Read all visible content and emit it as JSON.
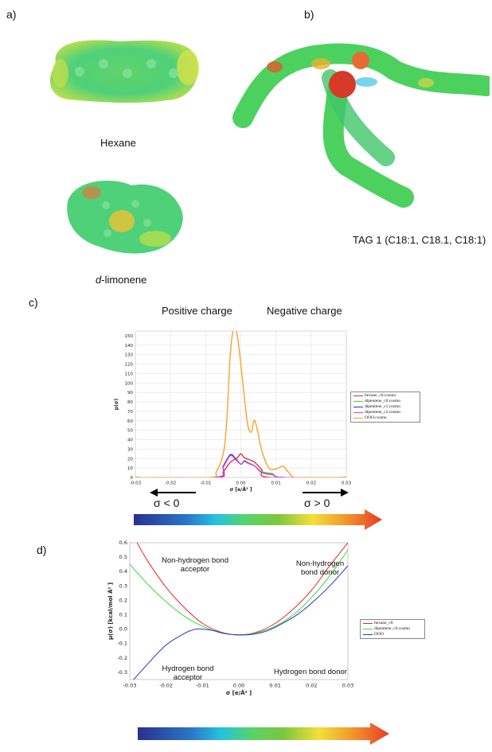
{
  "panels": {
    "a": "a)",
    "b": "b)",
    "c": "c)",
    "d": "d)"
  },
  "molecules": {
    "hexane": "Hexane",
    "limonene_italic": "d",
    "limonene_rest": "-limonene",
    "tag": "TAG 1 (C18:1, C18.1, C18:1)"
  },
  "panel_c": {
    "positive_charge": "Positive charge",
    "negative_charge": "Negative charge",
    "sigma_lt": "σ < 0",
    "sigma_gt": "σ > 0"
  },
  "panel_d": {
    "annotations": {
      "nh_acceptor": "Non-hydrogen bond\nacceptor",
      "nh_donor": "Non-hydrogen\nbond donor",
      "h_acceptor": "Hydrogen bond\nacceptor",
      "h_donor": "Hydrogen bond donor"
    }
  },
  "colors": {
    "red": "#e8252a",
    "green": "#3dd63d",
    "blue": "#2233cc",
    "magenta": "#e040e0",
    "orange": "#ff9a1a",
    "darkgreen": "#1b7a3a",
    "arrow_gradient": [
      "#2b2f8f",
      "#2a79c9",
      "#25c2e0",
      "#55d46b",
      "#7ec63c",
      "#f3e03a",
      "#f19a2a",
      "#e83a2a"
    ]
  },
  "chart_data": [
    {
      "type": "line",
      "ylabel": "p(σ)",
      "xlabel": "σ [e/Å² ]",
      "xlim": [
        -0.03,
        0.03
      ],
      "ylim": [
        0,
        155
      ],
      "xticks": [
        "-0.03",
        "-0.02",
        "-0.01",
        "0.00",
        "0.01",
        "0.02",
        "0.03"
      ],
      "yticks": [
        "0",
        "10",
        "20",
        "30",
        "40",
        "50",
        "60",
        "70",
        "80",
        "90",
        "100",
        "110",
        "120",
        "130",
        "140",
        "150"
      ],
      "grid": true,
      "legend_position": "right",
      "series": [
        {
          "name": "hexane_c0.cosmo",
          "color": "#e8252a",
          "x": [
            -0.03,
            -0.007,
            -0.005,
            -0.003,
            -0.001,
            0.0,
            0.001,
            0.003,
            0.004,
            0.006,
            0.008,
            0.03
          ],
          "y": [
            0,
            0,
            6,
            16,
            21,
            25,
            21,
            18,
            16,
            8,
            0,
            0
          ]
        },
        {
          "name": "dipentene_c0.cosmo",
          "color": "#3dd63d",
          "x": [
            -0.03,
            -0.007,
            -0.005,
            -0.003,
            -0.0015,
            0.0,
            0.001,
            0.002,
            0.004,
            0.006,
            0.009,
            0.012,
            0.03
          ],
          "y": [
            0,
            0,
            12,
            24,
            20,
            14,
            18,
            16,
            12,
            6,
            4,
            0,
            0
          ]
        },
        {
          "name": "dipentene_c1.cosmo",
          "color": "#2233cc",
          "x": [
            -0.03,
            -0.007,
            -0.005,
            -0.003,
            -0.0015,
            0.0,
            0.001,
            0.002,
            0.004,
            0.006,
            0.009,
            0.012,
            0.03
          ],
          "y": [
            0,
            0,
            12,
            24,
            20,
            14,
            17,
            15,
            12,
            5,
            3,
            0,
            0
          ]
        },
        {
          "name": "dipentene_c2.cosmo",
          "color": "#e040e0",
          "x": [
            -0.03,
            -0.007,
            -0.005,
            -0.003,
            -0.0015,
            0.0,
            0.001,
            0.002,
            0.004,
            0.006,
            0.009,
            0.012,
            0.03
          ],
          "y": [
            0,
            0,
            11,
            23,
            19,
            14,
            17,
            15,
            12,
            5,
            3,
            0,
            0
          ]
        },
        {
          "name": "OOO.cosmo",
          "color": "#ff9a1a",
          "x": [
            -0.03,
            -0.009,
            -0.007,
            -0.005,
            -0.004,
            -0.003,
            -0.002,
            -0.001,
            0.0,
            0.001,
            0.002,
            0.003,
            0.004,
            0.006,
            0.008,
            0.01,
            0.012,
            0.013,
            0.015,
            0.017,
            0.03
          ],
          "y": [
            0,
            0,
            6,
            25,
            60,
            130,
            158,
            150,
            120,
            85,
            55,
            48,
            60,
            28,
            10,
            9,
            12,
            8,
            0,
            0,
            0
          ]
        }
      ]
    },
    {
      "type": "line",
      "ylabel": "μ(σ) [kcal/mol Å² ]",
      "xlabel": "σ [e/Å² ]",
      "xlim": [
        -0.03,
        0.03
      ],
      "ylim": [
        -0.35,
        0.6
      ],
      "xticks": [
        "-0.03",
        "-0.02",
        "-0.01",
        "0.00",
        "0.01",
        "0.02",
        "0.03"
      ],
      "yticks": [
        "-0.3",
        "-0.2",
        "-0.1",
        "0.0",
        "0.1",
        "0.2",
        "0.3",
        "0.4",
        "0.5",
        "0.6"
      ],
      "grid": false,
      "legend_position": "right",
      "series": [
        {
          "name": "hexane_c0",
          "color": "#e8252a",
          "x": [
            -0.028,
            -0.025,
            -0.02,
            -0.015,
            -0.01,
            -0.005,
            0.0,
            0.005,
            0.01,
            0.015,
            0.02,
            0.025,
            0.03
          ],
          "y": [
            0.6,
            0.47,
            0.29,
            0.15,
            0.04,
            -0.02,
            -0.04,
            -0.02,
            0.04,
            0.14,
            0.27,
            0.44,
            0.6
          ]
        },
        {
          "name": "dipentene_c0.cosmo",
          "color": "#3dd63d",
          "x": [
            -0.03,
            -0.025,
            -0.02,
            -0.015,
            -0.01,
            -0.005,
            0.0,
            0.005,
            0.01,
            0.015,
            0.02,
            0.025,
            0.03
          ],
          "y": [
            0.45,
            0.31,
            0.19,
            0.09,
            0.02,
            -0.025,
            -0.04,
            -0.025,
            0.02,
            0.1,
            0.22,
            0.37,
            0.55
          ]
        },
        {
          "name": "OOO",
          "color": "#2233cc",
          "x": [
            -0.03,
            -0.025,
            -0.02,
            -0.015,
            -0.012,
            -0.01,
            -0.007,
            -0.004,
            0.0,
            0.004,
            0.008,
            0.012,
            0.016,
            0.02,
            0.025,
            0.03
          ],
          "y": [
            -0.38,
            -0.24,
            -0.11,
            -0.03,
            0.0,
            0.0,
            -0.01,
            -0.03,
            -0.04,
            -0.035,
            -0.01,
            0.04,
            0.1,
            0.18,
            0.3,
            0.44
          ]
        }
      ]
    }
  ]
}
